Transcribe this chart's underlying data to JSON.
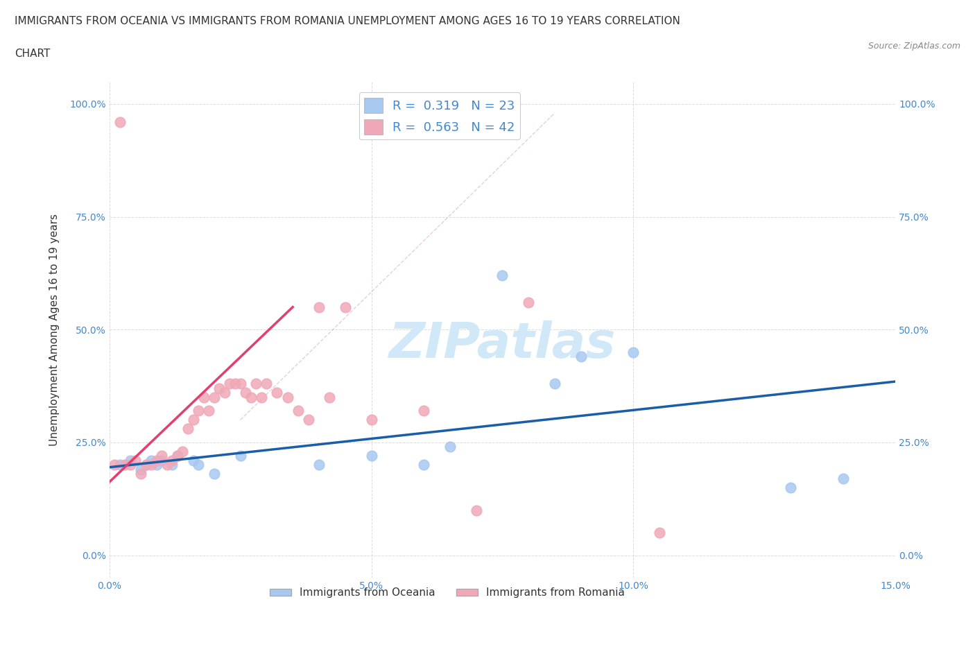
{
  "title_line1": "IMMIGRANTS FROM OCEANIA VS IMMIGRANTS FROM ROMANIA UNEMPLOYMENT AMONG AGES 16 TO 19 YEARS CORRELATION",
  "title_line2": "CHART",
  "source_text": "Source: ZipAtlas.com",
  "ylabel": "Unemployment Among Ages 16 to 19 years",
  "xlim": [
    0.0,
    0.15
  ],
  "ylim": [
    -0.05,
    1.05
  ],
  "ytick_labels": [
    "0.0%",
    "25.0%",
    "50.0%",
    "75.0%",
    "100.0%"
  ],
  "ytick_vals": [
    0.0,
    0.25,
    0.5,
    0.75,
    1.0
  ],
  "xtick_vals": [
    0.0,
    0.05,
    0.1,
    0.15
  ],
  "oceania_R": 0.319,
  "oceania_N": 23,
  "romania_R": 0.563,
  "romania_N": 42,
  "oceania_color": "#a8c8f0",
  "romania_color": "#f0a8b8",
  "oceania_line_color": "#1a5ea8",
  "romania_line_color": "#e04070",
  "background_color": "#ffffff",
  "watermark_color": "#d0e8f8",
  "oceania_scatter_x": [
    0.002,
    0.004,
    0.006,
    0.007,
    0.008,
    0.009,
    0.01,
    0.012,
    0.013,
    0.016,
    0.017,
    0.02,
    0.025,
    0.04,
    0.05,
    0.06,
    0.065,
    0.075,
    0.085,
    0.09,
    0.1,
    0.13,
    0.14
  ],
  "oceania_scatter_y": [
    0.2,
    0.21,
    0.19,
    0.2,
    0.21,
    0.2,
    0.21,
    0.2,
    0.22,
    0.21,
    0.2,
    0.18,
    0.22,
    0.2,
    0.22,
    0.2,
    0.24,
    0.62,
    0.38,
    0.44,
    0.45,
    0.15,
    0.17
  ],
  "romania_scatter_x": [
    0.001,
    0.002,
    0.003,
    0.004,
    0.005,
    0.006,
    0.007,
    0.008,
    0.009,
    0.01,
    0.011,
    0.012,
    0.013,
    0.014,
    0.015,
    0.016,
    0.017,
    0.018,
    0.019,
    0.02,
    0.021,
    0.022,
    0.023,
    0.024,
    0.025,
    0.026,
    0.027,
    0.028,
    0.029,
    0.03,
    0.032,
    0.034,
    0.036,
    0.038,
    0.04,
    0.042,
    0.045,
    0.05,
    0.06,
    0.07,
    0.08,
    0.105
  ],
  "romania_scatter_y": [
    0.2,
    0.96,
    0.2,
    0.2,
    0.21,
    0.18,
    0.2,
    0.2,
    0.21,
    0.22,
    0.2,
    0.21,
    0.22,
    0.23,
    0.28,
    0.3,
    0.32,
    0.35,
    0.32,
    0.35,
    0.37,
    0.36,
    0.38,
    0.38,
    0.38,
    0.36,
    0.35,
    0.38,
    0.35,
    0.38,
    0.36,
    0.35,
    0.32,
    0.3,
    0.55,
    0.35,
    0.55,
    0.3,
    0.32,
    0.1,
    0.56,
    0.05
  ],
  "diagonal_line_x": [
    0.025,
    0.085
  ],
  "diagonal_line_y": [
    0.3,
    0.98
  ],
  "oceania_trend_x": [
    0.0,
    0.15
  ],
  "oceania_trend_y": [
    0.195,
    0.385
  ],
  "romania_trend_x": [
    -0.002,
    0.035
  ],
  "romania_trend_y": [
    0.14,
    0.55
  ]
}
